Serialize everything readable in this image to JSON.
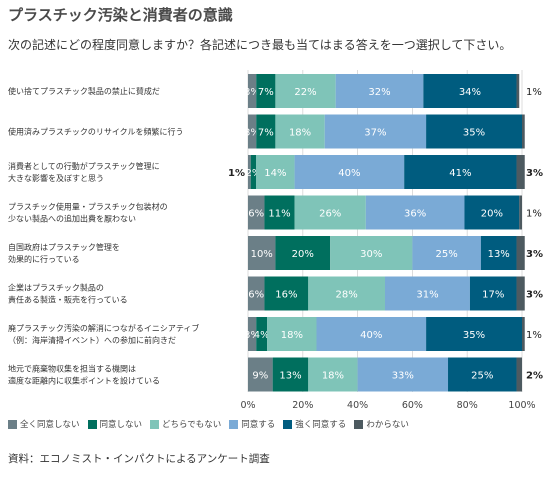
{
  "title": "プラスチック汚染と消費者の意識",
  "subtitle": "次の記述にどの程度同意しますか？各記述につき最も当てはまる答えを一つ選択して下さい。",
  "source": "資料：エコノミスト・インパクトによるアンケート調査",
  "chart_data": {
    "type": "bar",
    "orientation": "horizontal",
    "stacked": true,
    "xlim": [
      0,
      100
    ],
    "x_ticks": [
      "0%",
      "20%",
      "40%",
      "60%",
      "80%",
      "100%"
    ],
    "grid": true,
    "legend_position": "bottom",
    "categories": [
      [
        "使い捨てプラスチック製品の禁止に賛成だ"
      ],
      [
        "使用済みプラスチックのリサイクルを頻繁に行う"
      ],
      [
        "消費者としての行動がプラスチック管理に",
        "大きな影響を及ぼすと思う"
      ],
      [
        "プラスチック使用量・プラスチック包装材の",
        "少ない製品への追加出費を厭わない"
      ],
      [
        "自国政府はプラスチック管理を",
        "効果的に行っている"
      ],
      [
        "企業はプラスチック製品の",
        "責任ある製造・販売を行っている"
      ],
      [
        "廃プラスチック汚染の解消につながるイニシアティブ",
        "（例：海岸清掃イベント）への参加に前向きだ"
      ],
      [
        "地元で廃棄物収集を担当する機関は",
        "適度な距離内に収集ポイントを設けている"
      ]
    ],
    "series": [
      {
        "name": "全く同意しない",
        "color": "#6b7f87",
        "values": [
          3,
          3,
          1,
          6,
          10,
          6,
          3,
          9
        ]
      },
      {
        "name": "同意しない",
        "color": "#006f5e",
        "values": [
          7,
          7,
          2,
          11,
          20,
          16,
          4,
          13
        ]
      },
      {
        "name": "どちらでもない",
        "color": "#7fc4b8",
        "values": [
          22,
          18,
          14,
          26,
          30,
          28,
          18,
          18
        ]
      },
      {
        "name": "同意する",
        "color": "#7aaad6",
        "values": [
          32,
          37,
          40,
          36,
          25,
          31,
          40,
          33
        ]
      },
      {
        "name": "強く同意する",
        "color": "#005c7f",
        "values": [
          34,
          35,
          41,
          20,
          13,
          17,
          35,
          25
        ]
      },
      {
        "name": "わからない",
        "color": "#4d5a60",
        "values": [
          1,
          1,
          3,
          1,
          3,
          3,
          1,
          2
        ]
      }
    ],
    "value_labels": [
      [
        "3%",
        "7%",
        "22%",
        "32%",
        "34%",
        "1%"
      ],
      [
        "3%",
        "7%",
        "18%",
        "37%",
        "35%",
        ""
      ],
      [
        "1%",
        "2%",
        "14%",
        "40%",
        "41%",
        "3%"
      ],
      [
        "6%",
        "11%",
        "26%",
        "36%",
        "20%",
        "1%"
      ],
      [
        "10%",
        "20%",
        "30%",
        "25%",
        "13%",
        "3%"
      ],
      [
        "6%",
        "16%",
        "28%",
        "31%",
        "17%",
        "3%"
      ],
      [
        "3%",
        "4%",
        "18%",
        "40%",
        "35%",
        "1%"
      ],
      [
        "9%",
        "13%",
        "18%",
        "33%",
        "25%",
        "2%"
      ]
    ]
  }
}
